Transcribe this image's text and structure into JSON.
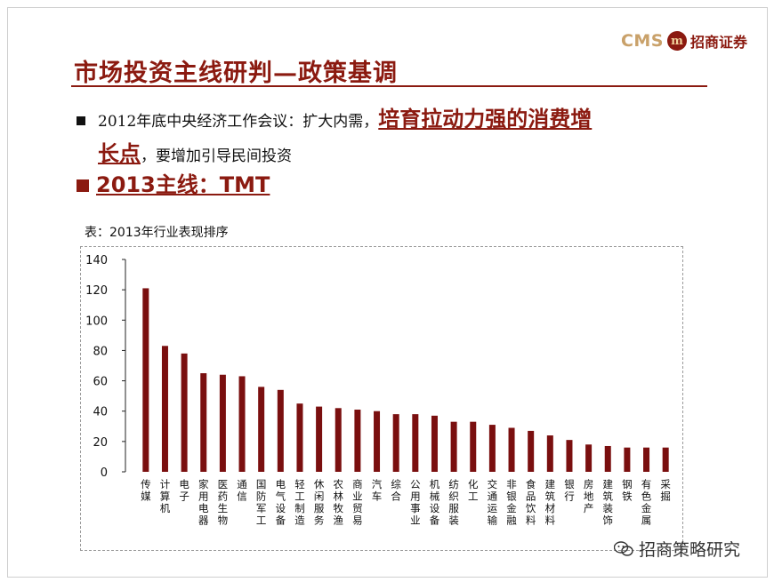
{
  "header": {
    "logo_cms": "CMS",
    "logo_mark": "m",
    "logo_name": "招商证券",
    "title": "市场投资主线研判—政策基调"
  },
  "bullets": {
    "b1_prefix": "2012年底中央经济工作会议：扩大内需，",
    "b1_emph1": "培育拉动力强的消费增",
    "b1_emph2": "长点",
    "b1_suffix": "，要增加引导民间投资",
    "b2": "2013主线：TMT"
  },
  "table_caption": "表：2013年行业表现排序",
  "watermark": "招商策略研究",
  "colors": {
    "accent": "#8b1a10",
    "bar": "#7a0f0f"
  },
  "chart_data": {
    "type": "bar",
    "categories": [
      "传媒",
      "计算机",
      "电子",
      "家用电器",
      "医药生物",
      "通信",
      "国防军工",
      "电气设备",
      "轻工制造",
      "休闲服务",
      "农林牧渔",
      "商业贸易",
      "汽车",
      "综合",
      "公用事业",
      "机械设备",
      "纺织服装",
      "化工",
      "交通运输",
      "非银金融",
      "食品饮料",
      "建筑材料",
      "银行",
      "房地产",
      "建筑装饰",
      "钢铁",
      "有色金属",
      "采掘"
    ],
    "values": [
      121,
      83,
      78,
      65,
      64,
      63,
      56,
      54,
      45,
      43,
      42,
      41,
      40,
      38,
      38,
      37,
      33,
      33,
      31,
      29,
      27,
      24,
      21,
      18,
      17,
      16,
      16,
      16
    ],
    "yticks": [
      0,
      20,
      40,
      60,
      80,
      100,
      120,
      140
    ],
    "ylim": [
      0,
      140
    ],
    "grid": false
  }
}
